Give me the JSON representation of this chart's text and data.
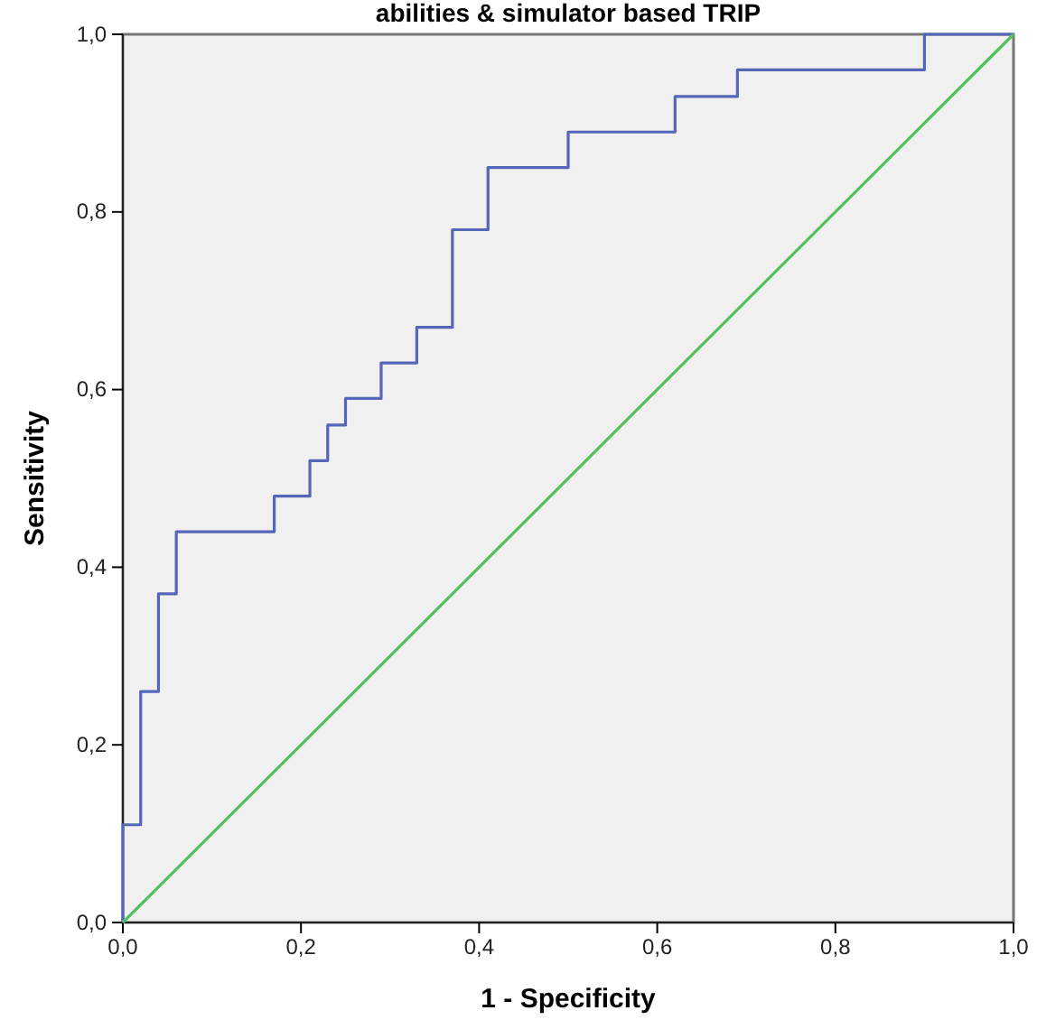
{
  "chart_data": {
    "type": "step",
    "title": "abilities & simulator based TRIP",
    "xlabel": "1 - Specificity",
    "ylabel": "Sensitivity",
    "series": [
      {
        "color": "#5566b8",
        "x": [
          0,
          0,
          0.02,
          0.04,
          0.06,
          0.17,
          0.21,
          0.23,
          0.25,
          0.29,
          0.33,
          0.37,
          0.41,
          0.5,
          0.62,
          0.69,
          0.9,
          1
        ],
        "values": [
          0,
          0.11,
          0.26,
          0.37,
          0.44,
          0.48,
          0.52,
          0.56,
          0.59,
          0.63,
          0.67,
          0.78,
          0.85,
          0.89,
          0.93,
          0.96,
          1,
          1
        ]
      },
      {
        "type": "line",
        "color": "#52c05a",
        "x": [
          0,
          1
        ],
        "values": [
          0,
          1
        ]
      }
    ],
    "xlim": [
      0,
      1
    ],
    "ylim": [
      0,
      1
    ],
    "xticks": [
      {
        "value": 0,
        "label": "0,0"
      },
      {
        "value": 0.2,
        "label": "0,2"
      },
      {
        "value": 0.4,
        "label": "0,4"
      },
      {
        "value": 0.6,
        "label": "0,6"
      },
      {
        "value": 0.8,
        "label": "0,8"
      },
      {
        "value": 1,
        "label": "1,0"
      }
    ],
    "yticks": [
      {
        "value": 0,
        "label": "0,0"
      },
      {
        "value": 0.2,
        "label": "0,2"
      },
      {
        "value": 0.4,
        "label": "0,4"
      },
      {
        "value": 0.6,
        "label": "0,6"
      },
      {
        "value": 0.8,
        "label": "0,8"
      },
      {
        "value": 1,
        "label": "1,0"
      }
    ],
    "grid": false
  }
}
